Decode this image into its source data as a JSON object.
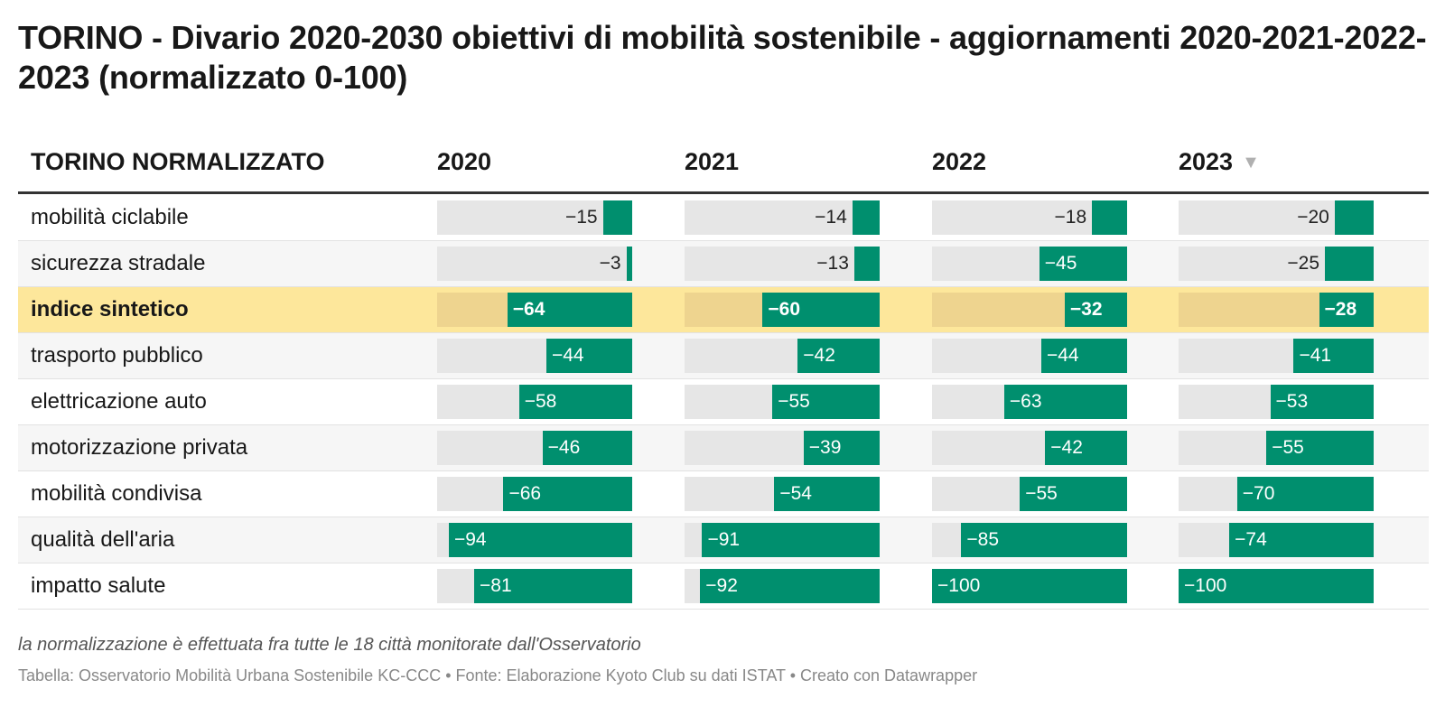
{
  "title": "TORINO - Divario 2020-2030 obiettivi di mobilità sostenibile - aggiornamenti 2020-2021-2022-2023 (normalizzato 0-100)",
  "header": {
    "label_column": "TORINO NORMALIZZATO",
    "year_columns": [
      "2020",
      "2021",
      "2022",
      "2023"
    ],
    "sort_icon": "▼"
  },
  "colors": {
    "bar": "#008f6e",
    "track": "#e6e6e6",
    "highlight_row": "#fde79b",
    "highlight_track": "#eed48f"
  },
  "chart_data": {
    "type": "table",
    "title": "TORINO - Divario 2020-2030 obiettivi di mobilità sostenibile - aggiornamenti 2020-2021-2022-2023 (normalizzato 0-100)",
    "columns": [
      "2020",
      "2021",
      "2022",
      "2023"
    ],
    "value_range": [
      -100,
      0
    ],
    "sorted_by": "2023",
    "highlighted_row": "indice sintetico",
    "rows": [
      {
        "label": "mobilità ciclabile",
        "values": [
          -15,
          -14,
          -18,
          -20
        ]
      },
      {
        "label": "sicurezza stradale",
        "values": [
          -3,
          -13,
          -45,
          -25
        ]
      },
      {
        "label": "indice sintetico",
        "values": [
          -64,
          -60,
          -32,
          -28
        ]
      },
      {
        "label": "trasporto pubblico",
        "values": [
          -44,
          -42,
          -44,
          -41
        ]
      },
      {
        "label": "elettricazione auto",
        "values": [
          -58,
          -55,
          -63,
          -53
        ]
      },
      {
        "label": "motorizzazione privata",
        "values": [
          -46,
          -39,
          -42,
          -55
        ]
      },
      {
        "label": "mobilità condivisa",
        "values": [
          -66,
          -54,
          -55,
          -70
        ]
      },
      {
        "label": "qualità dell'aria",
        "values": [
          -94,
          -91,
          -85,
          -74
        ]
      },
      {
        "label": "impatto salute",
        "values": [
          -81,
          -92,
          -100,
          -100
        ]
      }
    ]
  },
  "footer": {
    "note": "la normalizzazione è effettuata fra tutte le 18 città monitorate dall'Osservatorio",
    "credits": "Tabella: Osservatorio Mobilità Urbana Sostenibile KC-CCC • Fonte: Elaborazione Kyoto Club su dati ISTAT • Creato con Datawrapper"
  }
}
